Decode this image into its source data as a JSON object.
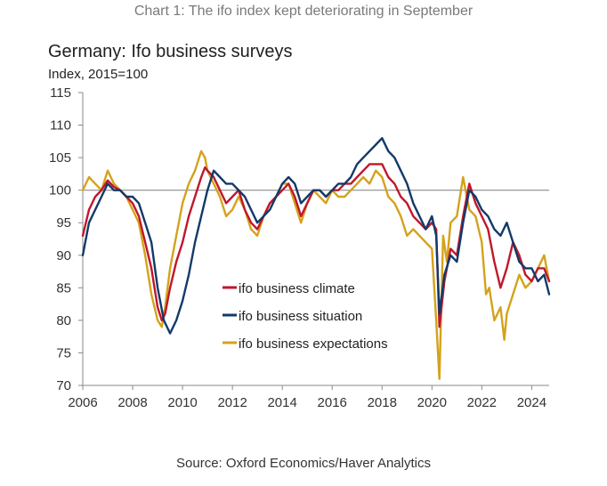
{
  "caption": "Chart 1: The ifo index kept deteriorating in September",
  "source": "Source: Oxford Economics/Haver Analytics",
  "colors": {
    "climate": "#c0172b",
    "situation": "#123a69",
    "expectations": "#d4a21c",
    "axis": "#888888",
    "refline": "#8c8c8c"
  },
  "chart_data": {
    "type": "line",
    "title": "Germany: Ifo business surveys",
    "ylabel": "Index, 2015=100",
    "xlim": [
      2006,
      2024.7
    ],
    "ylim": [
      70,
      115
    ],
    "xticks": [
      "2006",
      "2008",
      "2010",
      "2012",
      "2014",
      "2016",
      "2018",
      "2020",
      "2022",
      "2024"
    ],
    "yticks": [
      "70",
      "75",
      "80",
      "85",
      "90",
      "95",
      "100",
      "105",
      "110",
      "115"
    ],
    "reference_line": 100,
    "grid": false,
    "legend": "center",
    "series": [
      {
        "name": "ifo business climate",
        "key": "climate",
        "x": [
          2006.0,
          2006.25,
          2006.5,
          2006.75,
          2007.0,
          2007.25,
          2007.5,
          2007.75,
          2008.0,
          2008.25,
          2008.5,
          2008.75,
          2009.0,
          2009.17,
          2009.3,
          2009.5,
          2009.75,
          2010.0,
          2010.25,
          2010.5,
          2010.75,
          2010.9,
          2011.0,
          2011.25,
          2011.5,
          2011.75,
          2012.0,
          2012.25,
          2012.5,
          2012.75,
          2013.0,
          2013.25,
          2013.5,
          2013.75,
          2014.0,
          2014.25,
          2014.5,
          2014.75,
          2015.0,
          2015.25,
          2015.5,
          2015.75,
          2016.0,
          2016.25,
          2016.5,
          2016.75,
          2017.0,
          2017.25,
          2017.5,
          2017.75,
          2018.0,
          2018.25,
          2018.5,
          2018.75,
          2019.0,
          2019.25,
          2019.5,
          2019.75,
          2020.0,
          2020.17,
          2020.3,
          2020.5,
          2020.75,
          2021.0,
          2021.25,
          2021.5,
          2021.75,
          2022.0,
          2022.25,
          2022.5,
          2022.75,
          2023.0,
          2023.25,
          2023.5,
          2023.75,
          2024.0,
          2024.25,
          2024.5,
          2024.7
        ],
        "y": [
          93,
          97,
          99,
          100,
          101.5,
          100.5,
          100,
          99,
          98,
          96,
          92,
          88,
          82,
          80,
          81,
          85,
          89,
          92,
          96,
          99,
          102,
          103.5,
          103,
          102,
          100,
          98,
          99,
          100,
          97,
          95,
          94,
          96,
          98,
          99,
          100,
          101,
          99,
          96,
          98,
          100,
          100,
          99,
          100,
          100,
          101,
          101,
          102,
          103,
          104,
          104,
          104,
          102,
          101,
          99,
          98,
          96,
          95,
          94,
          95,
          94,
          79,
          86,
          91,
          90,
          96,
          101,
          98,
          96,
          94,
          89,
          85,
          88,
          92,
          90,
          87,
          86,
          88,
          88,
          86
        ]
      },
      {
        "name": "ifo business situation",
        "key": "situation",
        "x": [
          2006.0,
          2006.25,
          2006.5,
          2006.75,
          2007.0,
          2007.25,
          2007.5,
          2007.75,
          2008.0,
          2008.25,
          2008.5,
          2008.75,
          2009.0,
          2009.25,
          2009.5,
          2009.75,
          2010.0,
          2010.25,
          2010.5,
          2010.75,
          2011.0,
          2011.25,
          2011.5,
          2011.75,
          2012.0,
          2012.25,
          2012.5,
          2012.75,
          2013.0,
          2013.25,
          2013.5,
          2013.75,
          2014.0,
          2014.25,
          2014.5,
          2014.75,
          2015.0,
          2015.25,
          2015.5,
          2015.75,
          2016.0,
          2016.25,
          2016.5,
          2016.75,
          2017.0,
          2017.25,
          2017.5,
          2017.75,
          2018.0,
          2018.25,
          2018.5,
          2018.75,
          2019.0,
          2019.25,
          2019.5,
          2019.75,
          2020.0,
          2020.17,
          2020.3,
          2020.5,
          2020.75,
          2021.0,
          2021.25,
          2021.5,
          2021.75,
          2022.0,
          2022.25,
          2022.5,
          2022.75,
          2023.0,
          2023.25,
          2023.5,
          2023.75,
          2024.0,
          2024.25,
          2024.5,
          2024.7
        ],
        "y": [
          90,
          95,
          97,
          99,
          101,
          100,
          100,
          99,
          99,
          98,
          95,
          92,
          85,
          80,
          78,
          80,
          83,
          87,
          92,
          96,
          100,
          103,
          102,
          101,
          101,
          100,
          99,
          97,
          95,
          96,
          97,
          99,
          101,
          102,
          101,
          98,
          99,
          100,
          100,
          99,
          100,
          101,
          101,
          102,
          104,
          105,
          106,
          107,
          108,
          106,
          105,
          103,
          101,
          98,
          96,
          94,
          96,
          93,
          81,
          87,
          90,
          89,
          95,
          100,
          99,
          97,
          96,
          94,
          93,
          95,
          92,
          89,
          88,
          88,
          86,
          87,
          84
        ]
      },
      {
        "name": "ifo business expectations",
        "key": "expectations",
        "x": [
          2006.0,
          2006.25,
          2006.5,
          2006.75,
          2007.0,
          2007.25,
          2007.5,
          2007.75,
          2008.0,
          2008.25,
          2008.5,
          2008.75,
          2009.0,
          2009.17,
          2009.3,
          2009.5,
          2009.75,
          2010.0,
          2010.25,
          2010.5,
          2010.75,
          2010.9,
          2011.0,
          2011.25,
          2011.5,
          2011.75,
          2012.0,
          2012.25,
          2012.5,
          2012.75,
          2013.0,
          2013.25,
          2013.5,
          2013.75,
          2014.0,
          2014.25,
          2014.5,
          2014.75,
          2015.0,
          2015.25,
          2015.5,
          2015.75,
          2016.0,
          2016.25,
          2016.5,
          2016.75,
          2017.0,
          2017.25,
          2017.5,
          2017.75,
          2018.0,
          2018.25,
          2018.5,
          2018.75,
          2019.0,
          2019.25,
          2019.5,
          2019.75,
          2020.0,
          2020.17,
          2020.3,
          2020.45,
          2020.6,
          2020.75,
          2021.0,
          2021.25,
          2021.5,
          2021.75,
          2022.0,
          2022.17,
          2022.3,
          2022.5,
          2022.75,
          2022.9,
          2023.0,
          2023.25,
          2023.5,
          2023.75,
          2024.0,
          2024.25,
          2024.5,
          2024.7
        ],
        "y": [
          100,
          102,
          101,
          100,
          103,
          101,
          100,
          99,
          97,
          95,
          90,
          84,
          80,
          79,
          82,
          88,
          93,
          98,
          101,
          103,
          106,
          105,
          103,
          101,
          99,
          96,
          97,
          99,
          97,
          94,
          93,
          96,
          98,
          99,
          101,
          101,
          98,
          95,
          98,
          100,
          99,
          98,
          100,
          99,
          99,
          100,
          101,
          102,
          101,
          103,
          102,
          99,
          98,
          96,
          93,
          94,
          93,
          92,
          91,
          80,
          71,
          93,
          89,
          95,
          96,
          102,
          97,
          96,
          92,
          84,
          85,
          80,
          82,
          77,
          81,
          84,
          87,
          85,
          86,
          88,
          90,
          86
        ]
      }
    ]
  }
}
